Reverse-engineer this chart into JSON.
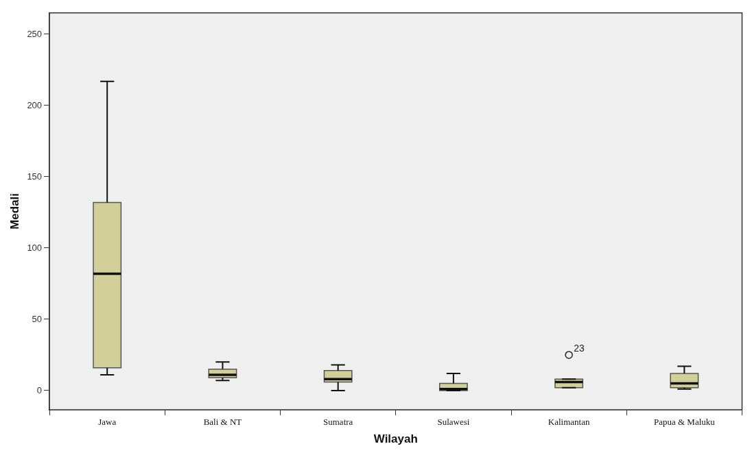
{
  "chart_data": {
    "type": "box",
    "xlabel": "Wilayah",
    "ylabel": "Medali",
    "color": "#d3cf98",
    "categories": [
      "Jawa",
      "Bali & NT",
      "Sumatra",
      "Sulawesi",
      "Kalimantan",
      "Papua & Maluku"
    ],
    "boxes": [
      {
        "low": 11,
        "q1": 16,
        "median": 82,
        "q3": 132,
        "high": 217
      },
      {
        "low": 7,
        "q1": 9,
        "median": 11,
        "q3": 15,
        "high": 20
      },
      {
        "low": 0,
        "q1": 6,
        "median": 8,
        "q3": 14,
        "high": 18
      },
      {
        "low": 0,
        "q1": 0,
        "median": 1,
        "q3": 5,
        "high": 12
      },
      {
        "low": 2,
        "q1": 2,
        "median": 6,
        "q3": 8,
        "high": 8,
        "outliers": [
          25
        ]
      },
      {
        "low": 1,
        "q1": 2,
        "median": 5,
        "q3": 12,
        "high": 17
      }
    ],
    "annotations": [
      "23"
    ],
    "ylim": [
      -13.5,
      265
    ],
    "yticks": [
      0,
      50,
      100,
      150,
      200,
      250
    ]
  }
}
